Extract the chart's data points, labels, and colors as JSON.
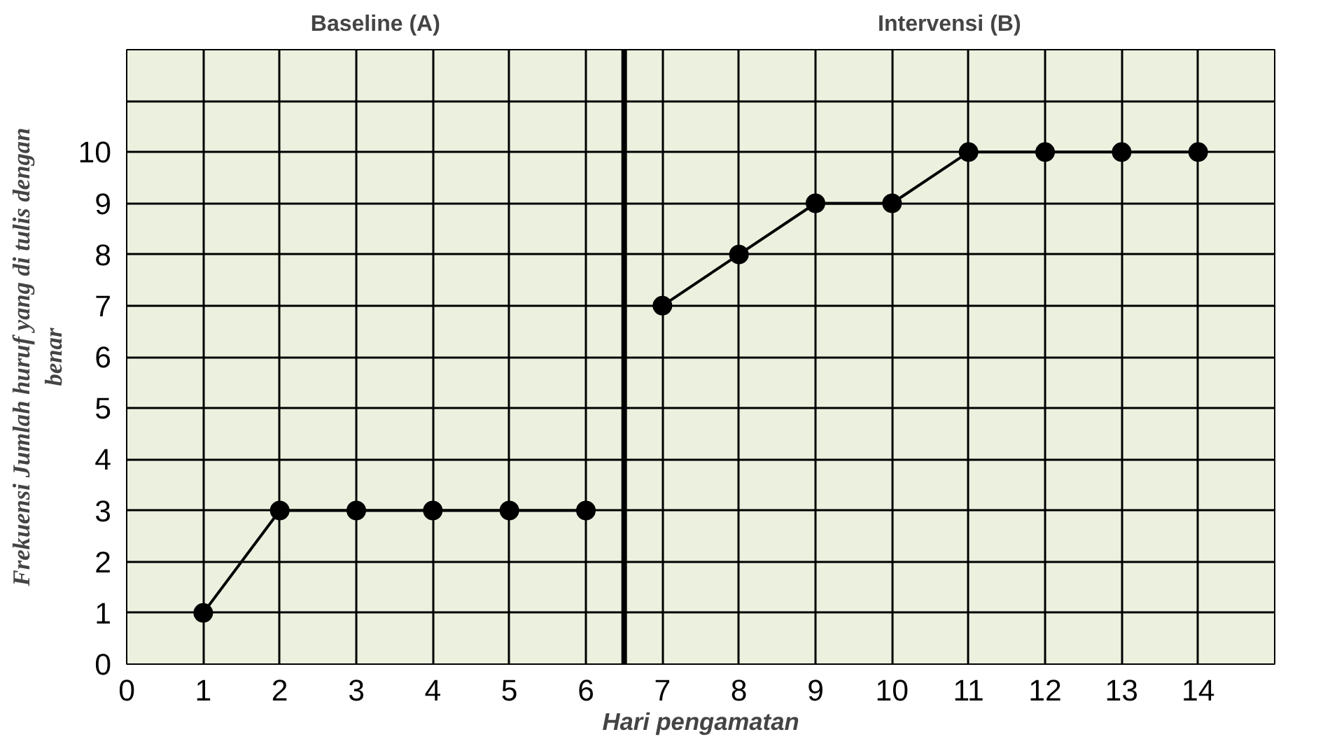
{
  "chart_data": {
    "type": "line",
    "xlabel": "Hari pengamatan",
    "ylabel": "Frekuensi Jumlah huruf yang di tulis dengan\nbenar",
    "annotations": [
      "Baseline (A)",
      "Intervensi (B)"
    ],
    "series": [
      {
        "color": "#000000",
        "x": [
          1,
          2,
          3,
          4,
          5,
          6
        ],
        "values": [
          1,
          3,
          3,
          3,
          3,
          3
        ]
      },
      {
        "color": "#000000",
        "x": [
          7,
          8,
          9,
          10,
          11,
          12,
          13,
          14
        ],
        "values": [
          7,
          8,
          9,
          9,
          10,
          10,
          10,
          10
        ]
      }
    ],
    "ref_lines": [
      {
        "axis": "x",
        "value": 6.5,
        "label": null,
        "color": "#000000"
      }
    ],
    "xlim": [
      0,
      15
    ],
    "xticks": [
      0,
      1,
      2,
      3,
      4,
      5,
      6,
      7,
      8,
      9,
      10,
      11,
      12,
      13,
      14,
      {
        "value": 15,
        "label": null
      }
    ],
    "ylim": [
      0,
      12
    ],
    "yticks": [
      0,
      1,
      2,
      3,
      4,
      5,
      6,
      7,
      8,
      9,
      10,
      {
        "value": 11,
        "label": null
      },
      {
        "value": 12,
        "label": null
      }
    ],
    "grid": true,
    "marker": "circle",
    "line_style": "solid"
  }
}
